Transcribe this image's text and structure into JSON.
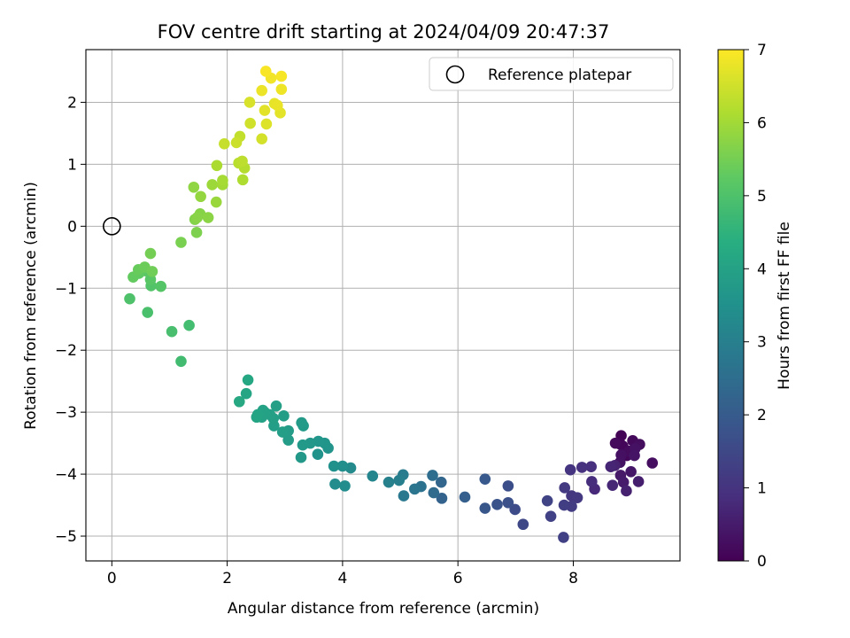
{
  "chart_data": {
    "type": "scatter",
    "title": "FOV centre drift starting at 2024/04/09 20:47:37",
    "xlabel": "Angular distance from reference (arcmin)",
    "ylabel": "Rotation from reference (arcmin)",
    "xlim": [
      -0.45,
      9.85
    ],
    "ylim": [
      -5.4,
      2.85
    ],
    "xticks": [
      "0",
      "2",
      "4",
      "6",
      "8"
    ],
    "yticks": [
      "−5",
      "−4",
      "−3",
      "−2",
      "−1",
      "0",
      "1",
      "2"
    ],
    "grid": true,
    "legend": {
      "placement": "top-right",
      "entries": [
        "Reference platepar"
      ]
    },
    "reference_point": {
      "x": 0,
      "y": 0
    },
    "colorbar": {
      "label": "Hours from first FF file",
      "range": [
        0,
        7
      ],
      "ticks": [
        "0",
        "1",
        "2",
        "3",
        "4",
        "5",
        "6",
        "7"
      ],
      "colormap": "viridis"
    },
    "points": [
      [
        8.83,
        -3.38,
        0.05
      ],
      [
        8.82,
        -3.52,
        0.08
      ],
      [
        8.86,
        -3.55,
        0.1
      ],
      [
        8.93,
        -3.7,
        0.12
      ],
      [
        9.03,
        -3.46,
        0.15
      ],
      [
        8.73,
        -3.5,
        0.18
      ],
      [
        8.97,
        -3.63,
        0.2
      ],
      [
        9.15,
        -3.52,
        0.22
      ],
      [
        9.37,
        -3.82,
        0.25
      ],
      [
        8.83,
        -3.69,
        0.28
      ],
      [
        8.81,
        -3.81,
        0.3
      ],
      [
        9.07,
        -3.59,
        0.33
      ],
      [
        9.06,
        -3.7,
        0.36
      ],
      [
        9.0,
        -3.96,
        0.4
      ],
      [
        8.82,
        -4.02,
        0.45
      ],
      [
        8.87,
        -4.13,
        0.5
      ],
      [
        9.13,
        -4.12,
        0.55
      ],
      [
        8.92,
        -4.27,
        0.6
      ],
      [
        8.72,
        -3.86,
        0.62
      ],
      [
        8.65,
        -3.88,
        0.68
      ],
      [
        8.68,
        -4.18,
        0.72
      ],
      [
        8.37,
        -4.24,
        0.78
      ],
      [
        8.32,
        -4.12,
        0.85
      ],
      [
        8.31,
        -3.88,
        0.9
      ],
      [
        8.15,
        -3.89,
        0.95
      ],
      [
        7.95,
        -3.93,
        1.0
      ],
      [
        7.97,
        -4.35,
        1.05
      ],
      [
        8.07,
        -4.38,
        1.1
      ],
      [
        7.85,
        -4.22,
        1.15
      ],
      [
        7.97,
        -4.52,
        1.2
      ],
      [
        7.84,
        -4.5,
        1.25
      ],
      [
        7.83,
        -5.02,
        1.3
      ],
      [
        7.61,
        -4.68,
        1.35
      ],
      [
        7.55,
        -4.43,
        1.4
      ],
      [
        7.13,
        -4.81,
        1.5
      ],
      [
        6.99,
        -4.57,
        1.6
      ],
      [
        6.87,
        -4.19,
        1.65
      ],
      [
        6.87,
        -4.46,
        1.7
      ],
      [
        6.68,
        -4.49,
        1.8
      ],
      [
        6.47,
        -4.55,
        1.85
      ],
      [
        6.47,
        -4.08,
        1.95
      ],
      [
        6.12,
        -4.37,
        2.1
      ],
      [
        5.72,
        -4.39,
        2.2
      ],
      [
        5.71,
        -4.13,
        2.3
      ],
      [
        5.58,
        -4.3,
        2.4
      ],
      [
        5.56,
        -4.02,
        2.5
      ],
      [
        5.36,
        -4.2,
        2.6
      ],
      [
        5.25,
        -4.24,
        2.7
      ],
      [
        5.06,
        -4.35,
        2.8
      ],
      [
        5.05,
        -4.01,
        2.9
      ],
      [
        4.98,
        -4.1,
        3.0
      ],
      [
        4.8,
        -4.13,
        3.05
      ],
      [
        4.52,
        -4.03,
        3.15
      ],
      [
        4.14,
        -3.9,
        3.3
      ],
      [
        4.04,
        -4.19,
        3.35
      ],
      [
        3.87,
        -4.16,
        3.4
      ],
      [
        4.0,
        -3.87,
        3.45
      ],
      [
        3.85,
        -3.87,
        3.5
      ],
      [
        3.57,
        -3.68,
        3.55
      ],
      [
        3.75,
        -3.58,
        3.6
      ],
      [
        3.69,
        -3.5,
        3.62
      ],
      [
        3.58,
        -3.47,
        3.65
      ],
      [
        3.44,
        -3.5,
        3.68
      ],
      [
        3.28,
        -3.73,
        3.72
      ],
      [
        3.31,
        -3.53,
        3.75
      ],
      [
        3.32,
        -3.22,
        3.78
      ],
      [
        3.29,
        -3.17,
        3.8
      ],
      [
        3.06,
        -3.3,
        3.82
      ],
      [
        3.06,
        -3.45,
        3.84
      ],
      [
        2.98,
        -3.06,
        3.86
      ],
      [
        2.96,
        -3.32,
        3.88
      ],
      [
        2.81,
        -3.22,
        3.9
      ],
      [
        2.8,
        -3.1,
        3.92
      ],
      [
        2.85,
        -2.9,
        3.94
      ],
      [
        2.74,
        -3.04,
        3.96
      ],
      [
        2.65,
        -3.0,
        3.98
      ],
      [
        2.62,
        -2.97,
        4.0
      ],
      [
        2.6,
        -3.08,
        4.02
      ],
      [
        2.53,
        -3.04,
        4.04
      ],
      [
        2.51,
        -3.08,
        4.06
      ],
      [
        2.33,
        -2.7,
        4.1
      ],
      [
        2.36,
        -2.48,
        4.15
      ],
      [
        2.21,
        -2.83,
        4.2
      ],
      [
        1.2,
        -2.18,
        4.8
      ],
      [
        1.34,
        -1.6,
        4.85
      ],
      [
        1.04,
        -1.7,
        4.9
      ],
      [
        0.62,
        -1.39,
        4.95
      ],
      [
        0.31,
        -1.17,
        5.0
      ],
      [
        0.68,
        -0.96,
        5.05
      ],
      [
        0.85,
        -0.97,
        5.1
      ],
      [
        0.67,
        -0.86,
        5.15
      ],
      [
        0.59,
        -0.72,
        5.2
      ],
      [
        0.47,
        -0.76,
        5.25
      ],
      [
        0.37,
        -0.82,
        5.3
      ],
      [
        0.46,
        -0.7,
        5.35
      ],
      [
        0.57,
        -0.66,
        5.4
      ],
      [
        0.7,
        -0.73,
        5.45
      ],
      [
        0.67,
        -0.44,
        5.5
      ],
      [
        1.2,
        -0.26,
        5.55
      ],
      [
        1.47,
        -0.1,
        5.6
      ],
      [
        1.44,
        0.11,
        5.65
      ],
      [
        1.53,
        0.2,
        5.7
      ],
      [
        1.48,
        0.14,
        5.72
      ],
      [
        1.67,
        0.14,
        5.75
      ],
      [
        1.42,
        0.63,
        5.8
      ],
      [
        1.54,
        0.48,
        5.85
      ],
      [
        1.81,
        0.39,
        5.9
      ],
      [
        1.74,
        0.67,
        5.95
      ],
      [
        1.92,
        0.67,
        6.0
      ],
      [
        1.92,
        0.74,
        6.05
      ],
      [
        1.82,
        0.98,
        6.1
      ],
      [
        2.27,
        0.75,
        6.15
      ],
      [
        2.3,
        0.94,
        6.2
      ],
      [
        2.2,
        1.02,
        6.25
      ],
      [
        2.26,
        1.05,
        6.3
      ],
      [
        2.22,
        1.45,
        6.35
      ],
      [
        1.95,
        1.33,
        6.4
      ],
      [
        2.16,
        1.35,
        6.45
      ],
      [
        2.4,
        1.66,
        6.5
      ],
      [
        2.6,
        1.41,
        6.55
      ],
      [
        2.39,
        2.0,
        6.6
      ],
      [
        2.68,
        1.65,
        6.65
      ],
      [
        2.65,
        1.87,
        6.7
      ],
      [
        2.92,
        1.83,
        6.72
      ],
      [
        2.82,
        1.98,
        6.75
      ],
      [
        2.87,
        1.95,
        6.78
      ],
      [
        2.6,
        2.19,
        6.8
      ],
      [
        2.94,
        2.21,
        6.85
      ],
      [
        2.76,
        2.39,
        6.88
      ],
      [
        2.94,
        2.42,
        6.92
      ],
      [
        2.67,
        2.5,
        6.95
      ]
    ]
  }
}
